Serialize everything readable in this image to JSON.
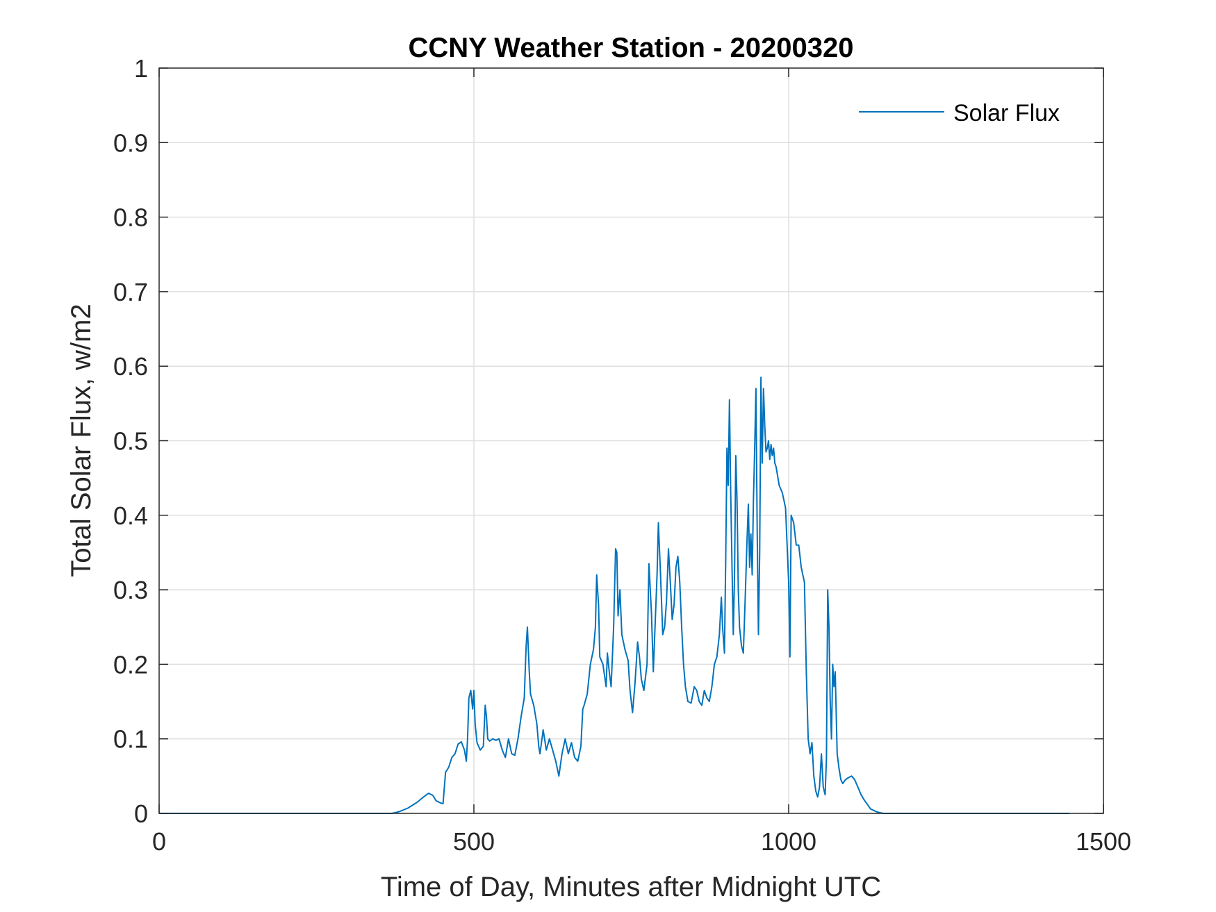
{
  "chart_data": {
    "type": "line",
    "title": "CCNY Weather Station - 20200320",
    "xlabel": "Time of Day, Minutes after Midnight UTC",
    "ylabel": "Total Solar Flux, w/m2",
    "xlim": [
      0,
      1500
    ],
    "ylim": [
      0,
      1
    ],
    "xticks": [
      0,
      500,
      1000,
      1500
    ],
    "xtick_labels": [
      "0",
      "500",
      "1000",
      "1500"
    ],
    "yticks": [
      0,
      0.1,
      0.2,
      0.3,
      0.4,
      0.5,
      0.6,
      0.7,
      0.8,
      0.9,
      1
    ],
    "ytick_labels": [
      "0",
      "0.1",
      "0.2",
      "0.3",
      "0.4",
      "0.5",
      "0.6",
      "0.7",
      "0.8",
      "0.9",
      "1"
    ],
    "grid": true,
    "legend_position": "top-right",
    "line_color": "#0072bd",
    "series": [
      {
        "name": "Solar Flux",
        "points": [
          [
            0,
            0
          ],
          [
            370,
            0
          ],
          [
            380,
            0.002
          ],
          [
            395,
            0.007
          ],
          [
            410,
            0.015
          ],
          [
            420,
            0.022
          ],
          [
            428,
            0.027
          ],
          [
            435,
            0.024
          ],
          [
            440,
            0.017
          ],
          [
            447,
            0.014
          ],
          [
            451,
            0.013
          ],
          [
            455,
            0.055
          ],
          [
            460,
            0.062
          ],
          [
            465,
            0.075
          ],
          [
            470,
            0.08
          ],
          [
            475,
            0.093
          ],
          [
            480,
            0.096
          ],
          [
            485,
            0.085
          ],
          [
            488,
            0.07
          ],
          [
            490,
            0.1
          ],
          [
            492,
            0.155
          ],
          [
            495,
            0.165
          ],
          [
            498,
            0.14
          ],
          [
            500,
            0.165
          ],
          [
            502,
            0.12
          ],
          [
            505,
            0.095
          ],
          [
            510,
            0.085
          ],
          [
            515,
            0.09
          ],
          [
            518,
            0.145
          ],
          [
            520,
            0.13
          ],
          [
            522,
            0.1
          ],
          [
            525,
            0.097
          ],
          [
            530,
            0.1
          ],
          [
            535,
            0.098
          ],
          [
            540,
            0.1
          ],
          [
            545,
            0.085
          ],
          [
            550,
            0.075
          ],
          [
            555,
            0.1
          ],
          [
            560,
            0.08
          ],
          [
            565,
            0.078
          ],
          [
            570,
            0.1
          ],
          [
            575,
            0.13
          ],
          [
            580,
            0.155
          ],
          [
            583,
            0.225
          ],
          [
            585,
            0.25
          ],
          [
            588,
            0.19
          ],
          [
            590,
            0.16
          ],
          [
            595,
            0.145
          ],
          [
            600,
            0.12
          ],
          [
            603,
            0.09
          ],
          [
            605,
            0.08
          ],
          [
            610,
            0.112
          ],
          [
            615,
            0.085
          ],
          [
            620,
            0.1
          ],
          [
            625,
            0.085
          ],
          [
            630,
            0.07
          ],
          [
            635,
            0.05
          ],
          [
            640,
            0.08
          ],
          [
            645,
            0.1
          ],
          [
            650,
            0.08
          ],
          [
            655,
            0.095
          ],
          [
            660,
            0.075
          ],
          [
            665,
            0.07
          ],
          [
            670,
            0.09
          ],
          [
            673,
            0.14
          ],
          [
            675,
            0.145
          ],
          [
            680,
            0.16
          ],
          [
            685,
            0.2
          ],
          [
            690,
            0.22
          ],
          [
            693,
            0.25
          ],
          [
            695,
            0.32
          ],
          [
            698,
            0.28
          ],
          [
            700,
            0.21
          ],
          [
            705,
            0.2
          ],
          [
            710,
            0.17
          ],
          [
            712,
            0.215
          ],
          [
            715,
            0.19
          ],
          [
            718,
            0.17
          ],
          [
            722,
            0.25
          ],
          [
            725,
            0.355
          ],
          [
            727,
            0.35
          ],
          [
            729,
            0.265
          ],
          [
            732,
            0.3
          ],
          [
            735,
            0.24
          ],
          [
            740,
            0.22
          ],
          [
            745,
            0.205
          ],
          [
            748,
            0.165
          ],
          [
            752,
            0.135
          ],
          [
            756,
            0.175
          ],
          [
            760,
            0.23
          ],
          [
            763,
            0.21
          ],
          [
            766,
            0.18
          ],
          [
            770,
            0.165
          ],
          [
            775,
            0.2
          ],
          [
            778,
            0.335
          ],
          [
            782,
            0.27
          ],
          [
            785,
            0.19
          ],
          [
            788,
            0.255
          ],
          [
            791,
            0.32
          ],
          [
            793,
            0.39
          ],
          [
            796,
            0.33
          ],
          [
            800,
            0.24
          ],
          [
            803,
            0.25
          ],
          [
            806,
            0.285
          ],
          [
            809,
            0.355
          ],
          [
            812,
            0.31
          ],
          [
            815,
            0.26
          ],
          [
            818,
            0.28
          ],
          [
            821,
            0.33
          ],
          [
            824,
            0.345
          ],
          [
            827,
            0.31
          ],
          [
            830,
            0.25
          ],
          [
            833,
            0.2
          ],
          [
            836,
            0.17
          ],
          [
            840,
            0.15
          ],
          [
            845,
            0.148
          ],
          [
            850,
            0.17
          ],
          [
            854,
            0.165
          ],
          [
            858,
            0.15
          ],
          [
            862,
            0.145
          ],
          [
            866,
            0.165
          ],
          [
            870,
            0.155
          ],
          [
            874,
            0.15
          ],
          [
            878,
            0.17
          ],
          [
            882,
            0.2
          ],
          [
            886,
            0.21
          ],
          [
            890,
            0.24
          ],
          [
            893,
            0.29
          ],
          [
            895,
            0.25
          ],
          [
            898,
            0.215
          ],
          [
            900,
            0.34
          ],
          [
            902,
            0.49
          ],
          [
            904,
            0.44
          ],
          [
            906,
            0.555
          ],
          [
            908,
            0.43
          ],
          [
            910,
            0.33
          ],
          [
            912,
            0.24
          ],
          [
            914,
            0.32
          ],
          [
            916,
            0.48
          ],
          [
            918,
            0.42
          ],
          [
            920,
            0.3
          ],
          [
            922,
            0.25
          ],
          [
            925,
            0.225
          ],
          [
            928,
            0.215
          ],
          [
            931,
            0.29
          ],
          [
            934,
            0.37
          ],
          [
            936,
            0.415
          ],
          [
            938,
            0.33
          ],
          [
            940,
            0.375
          ],
          [
            942,
            0.32
          ],
          [
            944,
            0.42
          ],
          [
            946,
            0.49
          ],
          [
            948,
            0.57
          ],
          [
            950,
            0.38
          ],
          [
            952,
            0.24
          ],
          [
            954,
            0.35
          ],
          [
            956,
            0.585
          ],
          [
            958,
            0.47
          ],
          [
            960,
            0.57
          ],
          [
            962,
            0.52
          ],
          [
            964,
            0.485
          ],
          [
            966,
            0.49
          ],
          [
            968,
            0.5
          ],
          [
            970,
            0.475
          ],
          [
            972,
            0.495
          ],
          [
            974,
            0.48
          ],
          [
            976,
            0.49
          ],
          [
            978,
            0.47
          ],
          [
            980,
            0.465
          ],
          [
            985,
            0.44
          ],
          [
            990,
            0.43
          ],
          [
            995,
            0.41
          ],
          [
            998,
            0.35
          ],
          [
            1000,
            0.31
          ],
          [
            1002,
            0.21
          ],
          [
            1004,
            0.4
          ],
          [
            1008,
            0.39
          ],
          [
            1012,
            0.36
          ],
          [
            1016,
            0.36
          ],
          [
            1020,
            0.33
          ],
          [
            1025,
            0.31
          ],
          [
            1028,
            0.19
          ],
          [
            1031,
            0.1
          ],
          [
            1034,
            0.08
          ],
          [
            1037,
            0.095
          ],
          [
            1040,
            0.05
          ],
          [
            1043,
            0.03
          ],
          [
            1046,
            0.022
          ],
          [
            1049,
            0.035
          ],
          [
            1052,
            0.08
          ],
          [
            1055,
            0.035
          ],
          [
            1058,
            0.025
          ],
          [
            1060,
            0.075
          ],
          [
            1062,
            0.3
          ],
          [
            1064,
            0.25
          ],
          [
            1066,
            0.15
          ],
          [
            1068,
            0.1
          ],
          [
            1070,
            0.2
          ],
          [
            1072,
            0.17
          ],
          [
            1074,
            0.19
          ],
          [
            1077,
            0.08
          ],
          [
            1080,
            0.06
          ],
          [
            1083,
            0.045
          ],
          [
            1086,
            0.04
          ],
          [
            1090,
            0.045
          ],
          [
            1095,
            0.048
          ],
          [
            1100,
            0.05
          ],
          [
            1105,
            0.045
          ],
          [
            1110,
            0.035
          ],
          [
            1115,
            0.025
          ],
          [
            1120,
            0.018
          ],
          [
            1125,
            0.012
          ],
          [
            1130,
            0.006
          ],
          [
            1135,
            0.004
          ],
          [
            1140,
            0.002
          ],
          [
            1150,
            0
          ],
          [
            1446,
            0
          ]
        ]
      }
    ]
  }
}
